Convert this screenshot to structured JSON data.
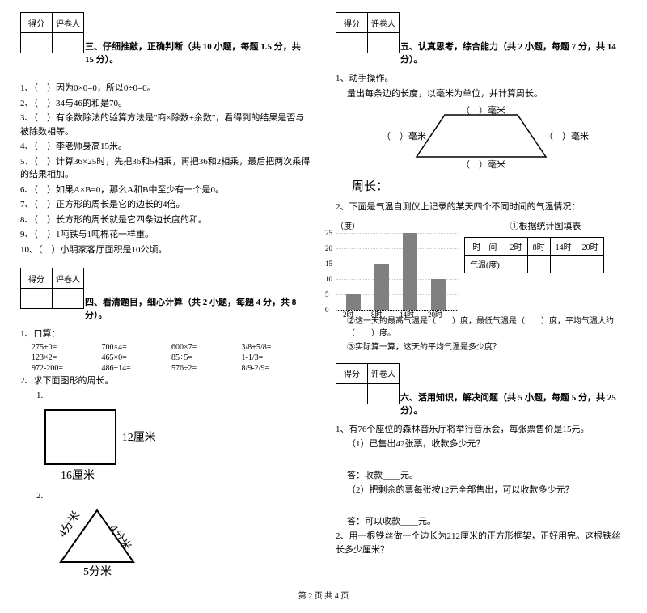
{
  "left": {
    "score_header": {
      "col1": "得分",
      "col2": "评卷人"
    },
    "section3": {
      "title": "三、仔细推敲，正确判断（共 10 小题，每题 1.5 分，共 15 分）。",
      "items": [
        "1、（　）因为0×0=0，所以0÷0=0。",
        "2、（　）34与46的和是70。",
        "3、（　）有余数除法的验算方法是\"商×除数+余数\"，看得到的结果是否与被除数相等。",
        "4、（　）李老师身高15米。",
        "5、（　）计算36×25时，先把36和5相乘，再把36和2相乘，最后把两次乘得的结果相加。",
        "6、（　）如果A×B=0，那么A和B中至少有一个是0。",
        "7、（　）正方形的周长是它的边长的4倍。",
        "8、（　）长方形的周长就是它四条边长度的和。",
        "9、（　）1吨铁与1吨棉花一样重。",
        "10、（　）小明家客厅面积是10公顷。"
      ]
    },
    "section4": {
      "title": "四、看清题目，细心计算（共 2 小题，每题 4 分，共 8 分）。",
      "q1_label": "1、口算：",
      "calc_rows": [
        [
          "275+0=",
          "700×4=",
          "600×7=",
          "3/8+5/8="
        ],
        [
          "123×2=",
          "465×0=",
          "85÷5=",
          "1-1/3="
        ],
        [
          "972-200=",
          "486+14=",
          "576÷2=",
          "8/9-2/9="
        ]
      ],
      "q2_label": "2、求下面图形的周长。",
      "fig1_num": "1.",
      "rect_right": "12厘米",
      "rect_bottom": "16厘米",
      "fig2_num": "2.",
      "tri_left": "4分米",
      "tri_right": "4分米",
      "tri_bottom": "5分米"
    }
  },
  "right": {
    "score_header": {
      "col1": "得分",
      "col2": "评卷人"
    },
    "section5": {
      "title": "五、认真思考，综合能力（共 2 小题，每题 7 分，共 14 分）。",
      "q1_label": "1、动手操作。",
      "q1_text": "量出每条边的长度，以毫米为单位，并计算周长。",
      "trap_top": "（　）毫米",
      "trap_left": "（　）毫米",
      "trap_right": "（　）毫米",
      "trap_bottom": "（　）毫米",
      "perimeter_label": "周长：",
      "q2_label": "2、下面是气温自测仪上记录的某天四个不同时间的气温情况：",
      "y_unit": "（度）",
      "y_ticks": [
        "25",
        "20",
        "15",
        "10",
        "5",
        "0"
      ],
      "x_ticks": [
        "2时",
        "8时",
        "14时",
        "20时"
      ],
      "chart_title": "①根据统计图填表",
      "bar_values": [
        5,
        15,
        25,
        10
      ],
      "y_max": 25,
      "bar_color": "#808080",
      "table_header": [
        "时　间",
        "2时",
        "8时",
        "14时",
        "20时"
      ],
      "table_row_label": "气温(度)",
      "q2_sub2": "②这一天的最高气温是（　　）度，最低气温是（　　）度，平均气温大约（　　）度。",
      "q2_sub3": "③实际算一算，这天的平均气温是多少度？"
    },
    "section6": {
      "title": "六、活用知识，解决问题（共 5 小题，每题 5 分，共 25 分）。",
      "q1_label": "1、有76个座位的森林音乐厅将举行音乐会，每张票售价是15元。",
      "q1_sub1": "（1）已售出42张票，收款多少元？",
      "q1_ans1": "答：收款____元。",
      "q1_sub2": "（2）把剩余的票每张按12元全部售出，可以收款多少元？",
      "q1_ans2": "答：可以收款____元。",
      "q2_label": "2、用一根铁丝做一个边长为212厘米的正方形框架，正好用完。这根铁丝长多少厘米？"
    }
  },
  "footer": "第 2 页 共 4 页"
}
